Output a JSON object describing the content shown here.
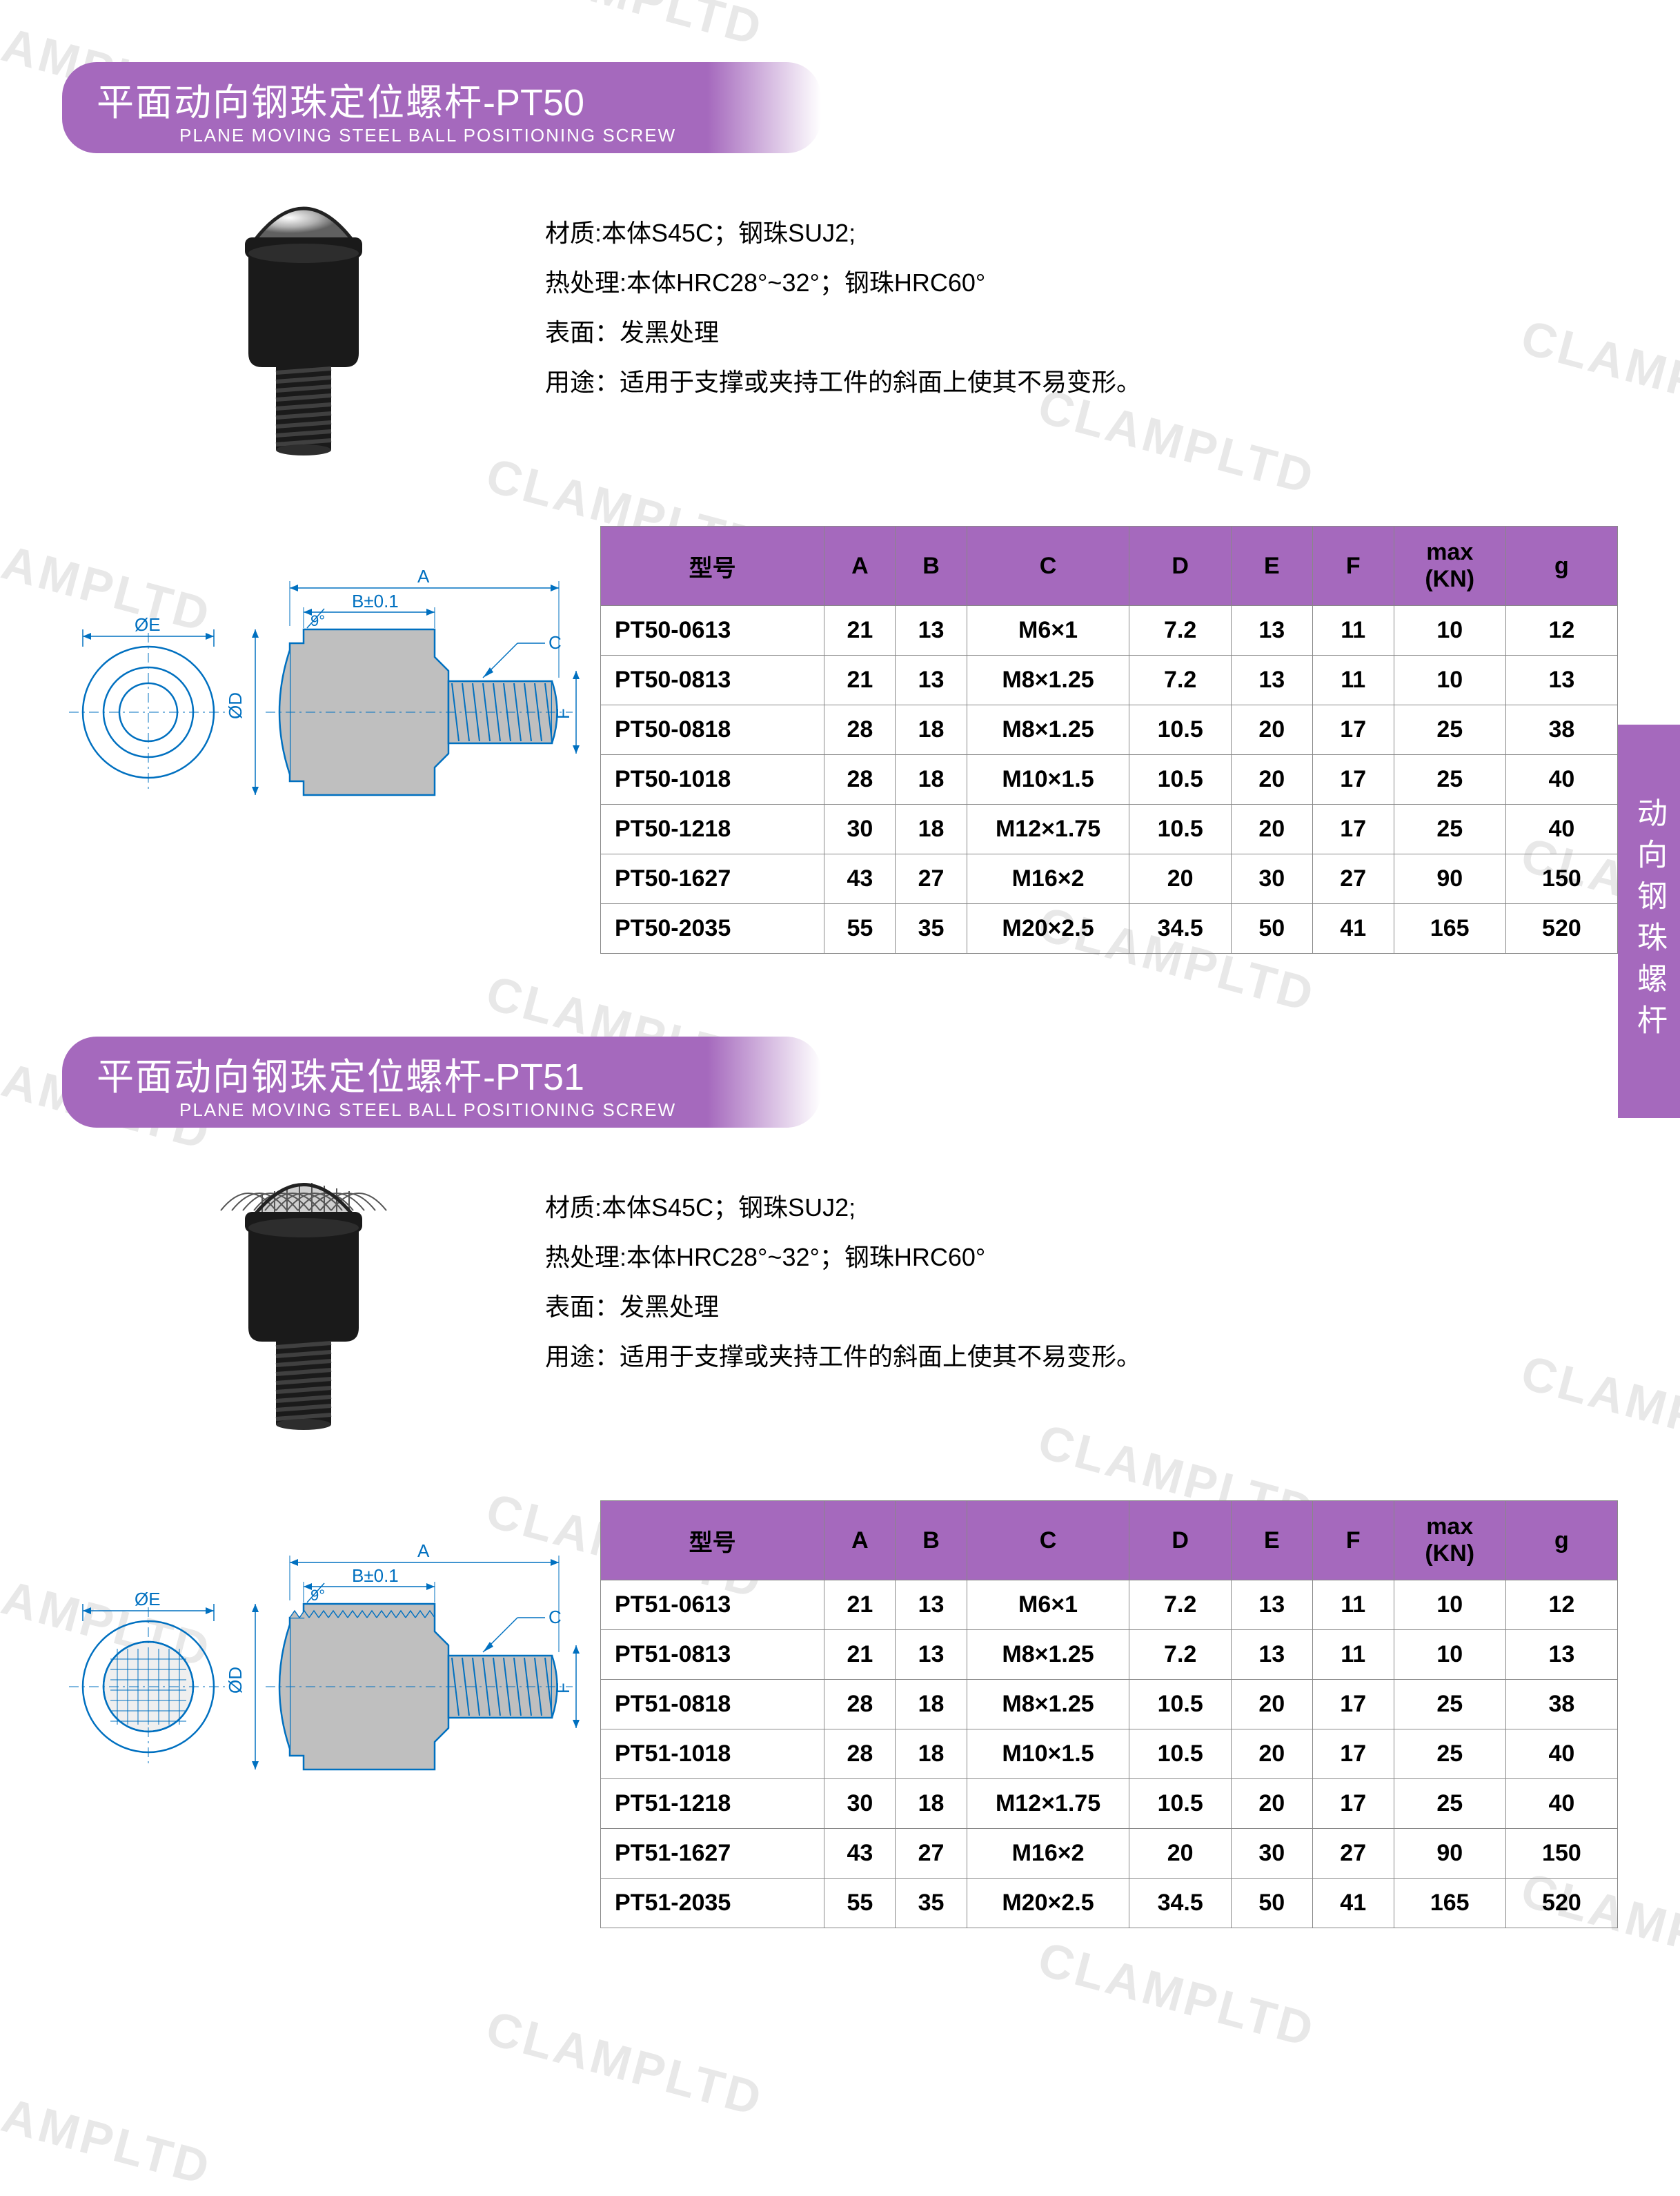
{
  "watermark_text": "CLAMPLTD",
  "side_tab": "动向钢珠螺杆",
  "colors": {
    "accent": "#a569bd",
    "table_border": "#888888",
    "text": "#000000",
    "diagram_line": "#0070c0",
    "diagram_fill": "#bfbfbf"
  },
  "products": [
    {
      "title_cn": "平面动向钢珠定位螺杆",
      "title_code": "-PT50",
      "title_en": "PLANE MOVING STEEL BALL POSITIONING SCREW",
      "photo_style": "smooth",
      "specs": [
        "材质:本体S45C；钢珠SUJ2;",
        "热处理:本体HRC28°~32°；钢珠HRC60°",
        "表面：发黑处理",
        "用途：适用于支撑或夹持工件的斜面上使其不易变形。"
      ],
      "diagram": {
        "labels": {
          "phiE": "ØE",
          "phiD": "ØD",
          "A": "A",
          "B": "B±0.1",
          "C": "C",
          "F": "F",
          "angle": "9°"
        }
      },
      "table": {
        "columns": [
          "型号",
          "A",
          "B",
          "C",
          "D",
          "E",
          "F",
          "max\n(KN)",
          "g"
        ],
        "col_widths": [
          "22%",
          "7%",
          "7%",
          "16%",
          "10%",
          "8%",
          "8%",
          "11%",
          "11%"
        ],
        "rows": [
          [
            "PT50-0613",
            "21",
            "13",
            "M6×1",
            "7.2",
            "13",
            "11",
            "10",
            "12"
          ],
          [
            "PT50-0813",
            "21",
            "13",
            "M8×1.25",
            "7.2",
            "13",
            "11",
            "10",
            "13"
          ],
          [
            "PT50-0818",
            "28",
            "18",
            "M8×1.25",
            "10.5",
            "20",
            "17",
            "25",
            "38"
          ],
          [
            "PT50-1018",
            "28",
            "18",
            "M10×1.5",
            "10.5",
            "20",
            "17",
            "25",
            "40"
          ],
          [
            "PT50-1218",
            "30",
            "18",
            "M12×1.75",
            "10.5",
            "20",
            "17",
            "25",
            "40"
          ],
          [
            "PT50-1627",
            "43",
            "27",
            "M16×2",
            "20",
            "30",
            "27",
            "90",
            "150"
          ],
          [
            "PT50-2035",
            "55",
            "35",
            "M20×2.5",
            "34.5",
            "50",
            "41",
            "165",
            "520"
          ]
        ]
      }
    },
    {
      "title_cn": "平面动向钢珠定位螺杆",
      "title_code": "-PT51",
      "title_en": "PLANE MOVING STEEL BALL POSITIONING SCREW",
      "photo_style": "knurled",
      "specs": [
        "材质:本体S45C；钢珠SUJ2;",
        "热处理:本体HRC28°~32°；钢珠HRC60°",
        "表面：发黑处理",
        "用途：适用于支撑或夹持工件的斜面上使其不易变形。"
      ],
      "diagram": {
        "labels": {
          "phiE": "ØE",
          "phiD": "ØD",
          "A": "A",
          "B": "B±0.1",
          "C": "C",
          "F": "F",
          "angle": "9°"
        }
      },
      "table": {
        "columns": [
          "型号",
          "A",
          "B",
          "C",
          "D",
          "E",
          "F",
          "max\n(KN)",
          "g"
        ],
        "col_widths": [
          "22%",
          "7%",
          "7%",
          "16%",
          "10%",
          "8%",
          "8%",
          "11%",
          "11%"
        ],
        "rows": [
          [
            "PT51-0613",
            "21",
            "13",
            "M6×1",
            "7.2",
            "13",
            "11",
            "10",
            "12"
          ],
          [
            "PT51-0813",
            "21",
            "13",
            "M8×1.25",
            "7.2",
            "13",
            "11",
            "10",
            "13"
          ],
          [
            "PT51-0818",
            "28",
            "18",
            "M8×1.25",
            "10.5",
            "20",
            "17",
            "25",
            "38"
          ],
          [
            "PT51-1018",
            "28",
            "18",
            "M10×1.5",
            "10.5",
            "20",
            "17",
            "25",
            "40"
          ],
          [
            "PT51-1218",
            "30",
            "18",
            "M12×1.75",
            "10.5",
            "20",
            "17",
            "25",
            "40"
          ],
          [
            "PT51-1627",
            "43",
            "27",
            "M16×2",
            "20",
            "30",
            "27",
            "90",
            "150"
          ],
          [
            "PT51-2035",
            "55",
            "35",
            "M20×2.5",
            "34.5",
            "50",
            "41",
            "165",
            "520"
          ]
        ]
      }
    }
  ]
}
